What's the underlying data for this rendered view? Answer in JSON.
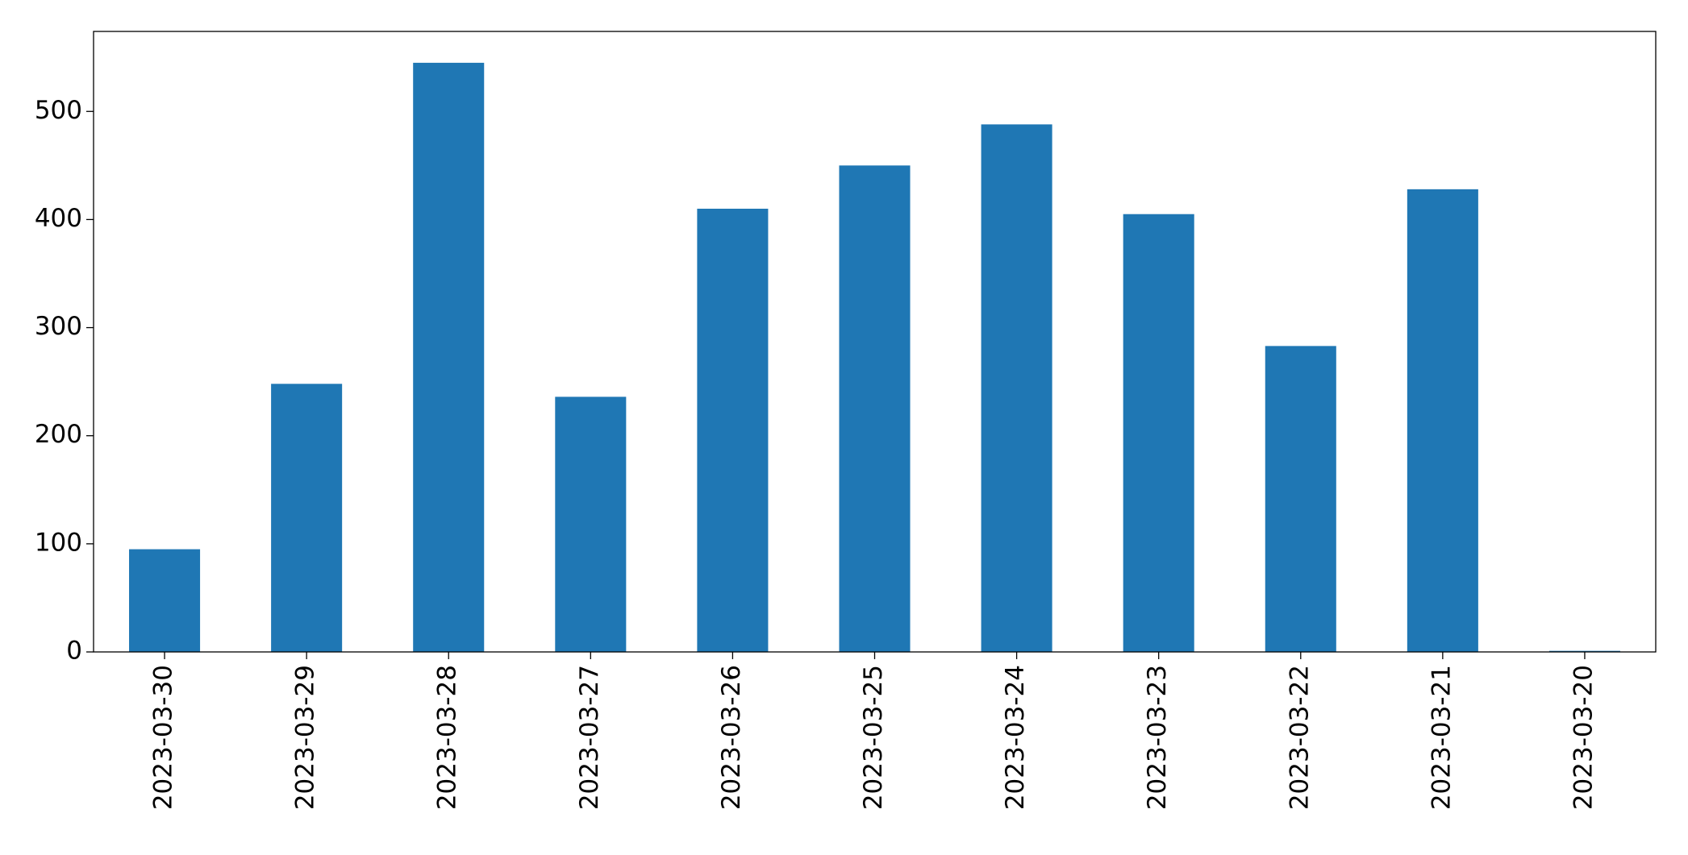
{
  "chart_data": {
    "type": "bar",
    "categories": [
      "2023-03-30",
      "2023-03-29",
      "2023-03-28",
      "2023-03-27",
      "2023-03-26",
      "2023-03-25",
      "2023-03-24",
      "2023-03-23",
      "2023-03-22",
      "2023-03-21",
      "2023-03-20"
    ],
    "values": [
      95,
      248,
      545,
      236,
      410,
      450,
      488,
      405,
      283,
      428,
      1
    ],
    "color": "#1f77b4",
    "ylim": [
      0,
      574
    ],
    "yticks": [
      0,
      100,
      200,
      300,
      400,
      500
    ],
    "grid": false
  }
}
